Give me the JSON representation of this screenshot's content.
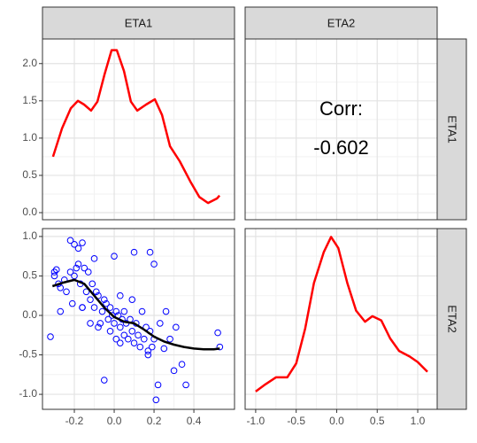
{
  "chart_data": {
    "type": "pairs",
    "columns": [
      {
        "name": "ETA1",
        "xlim": [
          -0.36,
          0.604
        ],
        "xticks": [
          -0.2,
          {
            "value": 0,
            "label": "0.0"
          },
          0.2,
          0.4
        ]
      },
      {
        "name": "ETA2",
        "xlim": [
          -1.13,
          1.24
        ],
        "xticks": [
          {
            "value": -1,
            "label": "-1.0"
          },
          -0.5,
          {
            "value": 0,
            "label": "0.0"
          },
          0.5,
          {
            "value": 1,
            "label": "1.0"
          }
        ]
      }
    ],
    "rows": [
      {
        "name": "ETA1",
        "ylim": [
          -0.095,
          2.33
        ],
        "yticks": [
          {
            "value": 0,
            "label": "0.0"
          },
          0.5,
          {
            "value": 1,
            "label": "1.0"
          },
          1.5,
          {
            "value": 2,
            "label": "2.0"
          }
        ]
      },
      {
        "name": "ETA2",
        "ylim": [
          -1.19,
          1.1
        ],
        "yticks": [
          {
            "value": -1,
            "label": "-1.0"
          },
          -0.5,
          {
            "value": 0,
            "label": "0.0"
          },
          0.5,
          {
            "value": 1,
            "label": "1.0"
          }
        ]
      }
    ],
    "panels": [
      {
        "type": "line",
        "color": "#ff0000",
        "x": [
          -0.307,
          -0.262,
          -0.218,
          -0.182,
          -0.151,
          -0.116,
          -0.084,
          -0.049,
          -0.013,
          0.013,
          0.049,
          0.084,
          0.116,
          0.16,
          0.204,
          0.24,
          0.28,
          0.329,
          0.382,
          0.427,
          0.471,
          0.516,
          0.529
        ],
        "values": [
          0.75,
          1.13,
          1.4,
          1.5,
          1.45,
          1.37,
          1.49,
          1.85,
          2.18,
          2.18,
          1.9,
          1.49,
          1.37,
          1.45,
          1.52,
          1.31,
          0.89,
          0.69,
          0.42,
          0.21,
          0.13,
          0.19,
          0.23
        ]
      },
      {
        "type": "text",
        "text": "Corr:",
        "value": -0.602
      },
      {
        "type": "scatter",
        "color": "#0000ff",
        "x": [
          -0.32,
          -0.3,
          -0.3,
          -0.29,
          -0.28,
          -0.27,
          -0.27,
          -0.25,
          -0.24,
          -0.22,
          -0.22,
          -0.21,
          -0.2,
          -0.2,
          -0.19,
          -0.18,
          -0.18,
          -0.17,
          -0.16,
          -0.16,
          -0.15,
          -0.14,
          -0.13,
          -0.12,
          -0.12,
          -0.11,
          -0.1,
          -0.1,
          -0.09,
          -0.08,
          -0.08,
          -0.07,
          -0.06,
          -0.05,
          -0.05,
          -0.04,
          -0.03,
          -0.02,
          -0.02,
          -0.01,
          0,
          0,
          0.01,
          0.01,
          0.02,
          0.03,
          0.03,
          0.04,
          0.05,
          0.05,
          0.06,
          0.07,
          0.08,
          0.09,
          0.1,
          0.1,
          0.11,
          0.12,
          0.13,
          0.14,
          0.15,
          0.16,
          0.17,
          0.18,
          0.18,
          0.19,
          0.2,
          0.2,
          0.21,
          0.22,
          0.23,
          0.25,
          0.26,
          0.28,
          0.3,
          0.31,
          0.34,
          0.36,
          0.52,
          0.53,
          0.03,
          -0.16,
          0.17,
          0.09
        ],
        "values": [
          -0.27,
          0.55,
          0.5,
          0.58,
          0.4,
          0.35,
          0.05,
          0.45,
          0.3,
          0.95,
          0.55,
          0.15,
          0.9,
          0.5,
          0.6,
          0.85,
          0.65,
          0.4,
          0.92,
          0.1,
          0.6,
          0.3,
          0.55,
          0.2,
          -0.1,
          0.4,
          0.72,
          0.1,
          0.3,
          0.25,
          -0.15,
          -0.1,
          0.05,
          -0.82,
          0.2,
          0.15,
          -0.05,
          0.1,
          -0.2,
          0,
          0.75,
          -0.1,
          0.05,
          -0.3,
          0,
          -0.15,
          0.25,
          -0.05,
          -0.25,
          0.05,
          -0.1,
          -0.3,
          -0.05,
          -0.2,
          0.8,
          -0.35,
          -0.1,
          -0.25,
          -0.4,
          0.05,
          -0.3,
          -0.15,
          -0.45,
          0.8,
          -0.2,
          -0.4,
          0.65,
          -0.3,
          -1.07,
          -0.88,
          -0.1,
          -0.42,
          0.05,
          -0.3,
          -0.7,
          -0.15,
          -0.62,
          -0.88,
          -0.22,
          -0.4,
          -0.35,
          0.1,
          -0.5,
          0.2
        ],
        "smooth": {
          "color": "#000000",
          "x": [
            -0.31,
            -0.25,
            -0.2,
            -0.15,
            -0.1,
            -0.05,
            0,
            0.05,
            0.1,
            0.15,
            0.2,
            0.25,
            0.3,
            0.35,
            0.4,
            0.45,
            0.5,
            0.53
          ],
          "values": [
            0.37,
            0.42,
            0.45,
            0.4,
            0.25,
            0.1,
            -0.02,
            -0.08,
            -0.1,
            -0.18,
            -0.27,
            -0.33,
            -0.37,
            -0.4,
            -0.42,
            -0.43,
            -0.43,
            -0.42
          ]
        }
      },
      {
        "type": "line",
        "color": "#ff0000",
        "ylim": [
          -0.05,
          1.25
        ],
        "x": [
          -1,
          -0.88,
          -0.75,
          -0.61,
          -0.5,
          -0.39,
          -0.28,
          -0.16,
          -0.07,
          0.02,
          0.13,
          0.24,
          0.35,
          0.44,
          0.55,
          0.66,
          0.77,
          0.9,
          1,
          1.12
        ],
        "values": [
          0.078,
          0.13,
          0.18,
          0.18,
          0.28,
          0.53,
          0.86,
          1.08,
          1.19,
          1.11,
          0.86,
          0.66,
          0.58,
          0.62,
          0.59,
          0.46,
          0.37,
          0.33,
          0.29,
          0.22
        ]
      }
    ]
  }
}
